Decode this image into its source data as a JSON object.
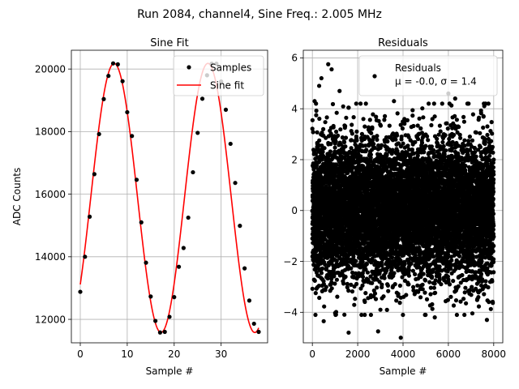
{
  "figure": {
    "suptitle": "Run 2084, channel4, Sine Freq.: 2.005 MHz"
  },
  "chart_data": [
    {
      "type": "line",
      "title": "Sine Fit",
      "xlabel": "Sample #",
      "ylabel": "ADC Counts",
      "xlim": [
        -1.9,
        39.9
      ],
      "ylim": [
        11250,
        20600
      ],
      "xticks": [
        0,
        10,
        20,
        30
      ],
      "yticks": [
        12000,
        14000,
        16000,
        18000,
        20000
      ],
      "grid": true,
      "legend_placement": "upper-right",
      "legend_entries": [
        "Samples",
        "Sine fit"
      ],
      "samples_name": "Samples",
      "fit_name": "Sine fit",
      "samples": {
        "x": [
          0,
          1,
          2,
          3,
          4,
          5,
          6,
          7,
          8,
          9,
          10,
          11,
          12,
          13,
          14,
          15,
          16,
          17,
          18,
          19,
          20,
          21,
          22,
          23,
          24,
          25,
          26,
          27,
          28,
          29,
          30,
          31,
          32,
          33,
          34,
          35,
          36,
          37,
          38
        ],
        "y": [
          12880,
          14000,
          15280,
          16640,
          17920,
          19040,
          19780,
          20180,
          20150,
          19610,
          18620,
          17860,
          16460,
          15100,
          13810,
          12730,
          11950,
          11580,
          11600,
          12080,
          12710,
          13680,
          14280,
          15250,
          16700,
          17960,
          19050,
          19800,
          20170,
          20170,
          19600,
          18700,
          17610,
          16360,
          14990,
          13630,
          12600,
          11860,
          11600
        ]
      },
      "fit": {
        "amplitude": 4300,
        "offset": 15880,
        "period": 19.97,
        "phase_deg": -40,
        "x_range": [
          0,
          38
        ]
      },
      "colors": {
        "samples": "#000000",
        "fit": "#ff0000"
      }
    },
    {
      "type": "scatter",
      "title": "Residuals",
      "xlabel": "Sample #",
      "ylabel": "",
      "xlim": [
        -400,
        8400
      ],
      "ylim": [
        -5.2,
        6.3
      ],
      "xticks": [
        0,
        2000,
        4000,
        6000,
        8000
      ],
      "yticks": [
        -4,
        -2,
        0,
        2,
        4,
        6
      ],
      "grid": true,
      "legend_placement": "upper-right",
      "legend_entries": [
        "Residuals",
        "μ = -0.0, σ = 1.4"
      ],
      "series_name": "Residuals",
      "stats_label": "μ = -0.0, σ = 1.4",
      "mean": -0.0,
      "sigma": 1.4,
      "n_points": 8000,
      "outliers": [
        {
          "x": 100,
          "y": 4.3
        },
        {
          "x": 300,
          "y": 4.9
        },
        {
          "x": 400,
          "y": 5.2
        },
        {
          "x": 700,
          "y": 5.75
        },
        {
          "x": 850,
          "y": 5.55
        },
        {
          "x": 1200,
          "y": 4.7
        },
        {
          "x": 3600,
          "y": 4.3
        },
        {
          "x": 6000,
          "y": 4.6
        },
        {
          "x": 6300,
          "y": 4.4
        },
        {
          "x": 2900,
          "y": -4.75
        },
        {
          "x": 1600,
          "y": -4.8
        },
        {
          "x": 3900,
          "y": -5.0
        },
        {
          "x": 500,
          "y": -4.35
        },
        {
          "x": 5400,
          "y": -4.2
        },
        {
          "x": 7700,
          "y": -4.3
        }
      ],
      "colors": {
        "points": "#000000"
      }
    }
  ]
}
